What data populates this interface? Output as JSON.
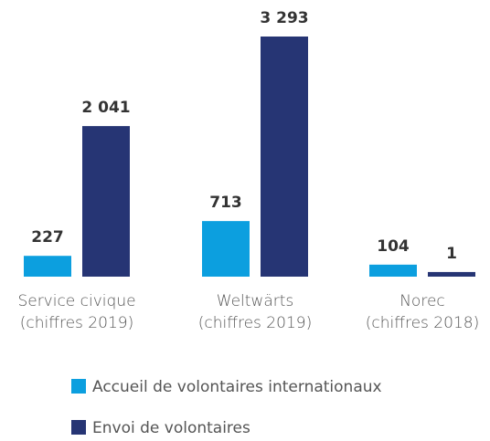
{
  "chart_data": {
    "type": "bar",
    "categories": [
      [
        "Service civique",
        "(chiffres 2019)"
      ],
      [
        "Weltwärts",
        "(chiffres 2019)"
      ],
      [
        "Norec",
        "(chiffres 2018)"
      ]
    ],
    "series": [
      {
        "name": "Accueil de volontaires internationaux",
        "color": "#0c9fdf",
        "values": [
          227,
          713,
          104
        ],
        "value_labels": [
          "227",
          "713",
          "104"
        ]
      },
      {
        "name": "Envoi de volontaires",
        "color": "#263574",
        "values": [
          2041,
          3293,
          1
        ],
        "value_labels": [
          "2 041",
          "3 293",
          "1"
        ]
      }
    ],
    "legend": "bottom"
  }
}
